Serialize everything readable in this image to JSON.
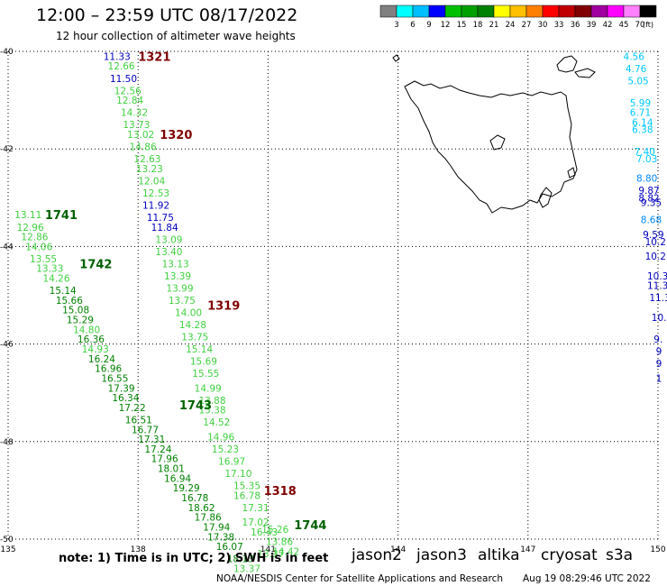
{
  "header": {
    "title": "12:00 – 23:59 UTC 08/17/2022",
    "subtitle": "12 hour collection of altimeter wave heights"
  },
  "legend": {
    "colors": [
      "#808080",
      "#00ffff",
      "#00bfff",
      "#0000ff",
      "#00c000",
      "#00a000",
      "#008000",
      "#ffff00",
      "#ffc000",
      "#ff8000",
      "#ff0000",
      "#c00000",
      "#800000",
      "#a000a0",
      "#ff00ff",
      "#ff80ff",
      "#000000"
    ],
    "labels": [
      "3",
      "6",
      "9",
      "12",
      "15",
      "18",
      "21",
      "24",
      "27",
      "30",
      "33",
      "36",
      "39",
      "42",
      "45",
      "70"
    ],
    "units": "(ft)"
  },
  "axes": {
    "lat_labels": [
      {
        "text": "-40",
        "lat": -40
      },
      {
        "text": "-42",
        "lat": -42
      },
      {
        "text": "-44",
        "lat": -44
      },
      {
        "text": "-46",
        "lat": -46
      },
      {
        "text": "-48",
        "lat": -48
      },
      {
        "text": "-50",
        "lat": -50
      }
    ],
    "lon_labels": [
      {
        "text": "135",
        "lon": 135
      },
      {
        "text": "138",
        "lon": 138
      },
      {
        "text": "141",
        "lon": 141
      },
      {
        "text": "144",
        "lon": 144
      },
      {
        "text": "147",
        "lon": 147
      },
      {
        "text": "150",
        "lon": 150
      }
    ],
    "lon_range": [
      135,
      150
    ],
    "lat_range": [
      -50,
      -40
    ]
  },
  "tracks": {
    "times": [
      {
        "text": "1321",
        "lon": 138.0,
        "lat": -40.1,
        "color": "#800000"
      },
      {
        "text": "1320",
        "lon": 138.5,
        "lat": -41.7,
        "color": "#800000"
      },
      {
        "text": "1741",
        "lon": 135.85,
        "lat": -43.35,
        "color": "#006000"
      },
      {
        "text": "1742",
        "lon": 136.65,
        "lat": -44.35,
        "color": "#006000"
      },
      {
        "text": "1319",
        "lon": 139.6,
        "lat": -45.2,
        "color": "#800000"
      },
      {
        "text": "1743",
        "lon": 138.95,
        "lat": -47.25,
        "color": "#006000"
      },
      {
        "text": "1318",
        "lon": 140.9,
        "lat": -49.0,
        "color": "#800000"
      },
      {
        "text": "1744",
        "lon": 141.6,
        "lat": -49.7,
        "color": "#006000"
      }
    ],
    "points": [
      {
        "v": "11.33",
        "lon": 137.2,
        "lat": -40.1,
        "c": "#0000c0"
      },
      {
        "v": "12.66",
        "lon": 137.3,
        "lat": -40.3,
        "c": "#40d040"
      },
      {
        "v": "11.50",
        "lon": 137.35,
        "lat": -40.55,
        "c": "#0000c0"
      },
      {
        "v": "12.56",
        "lon": 137.45,
        "lat": -40.8,
        "c": "#40d040"
      },
      {
        "v": "12.84",
        "lon": 137.5,
        "lat": -41.0,
        "c": "#40d040"
      },
      {
        "v": "14.32",
        "lon": 137.6,
        "lat": -41.25,
        "c": "#40d040"
      },
      {
        "v": "13.73",
        "lon": 137.65,
        "lat": -41.5,
        "c": "#40d040"
      },
      {
        "v": "13.02",
        "lon": 137.75,
        "lat": -41.7,
        "c": "#40d040"
      },
      {
        "v": "14.86",
        "lon": 137.8,
        "lat": -41.95,
        "c": "#40d040"
      },
      {
        "v": "12.63",
        "lon": 137.9,
        "lat": -42.2,
        "c": "#40d040"
      },
      {
        "v": "13.23",
        "lon": 137.95,
        "lat": -42.4,
        "c": "#40d040"
      },
      {
        "v": "12.04",
        "lon": 138.0,
        "lat": -42.65,
        "c": "#40d040"
      },
      {
        "v": "12.53",
        "lon": 138.1,
        "lat": -42.9,
        "c": "#40d040"
      },
      {
        "v": "11.92",
        "lon": 138.1,
        "lat": -43.15,
        "c": "#0000c0"
      },
      {
        "v": "11.75",
        "lon": 138.2,
        "lat": -43.4,
        "c": "#0000c0"
      },
      {
        "v": "11.84",
        "lon": 138.3,
        "lat": -43.6,
        "c": "#0000c0"
      },
      {
        "v": "13.09",
        "lon": 138.4,
        "lat": -43.85,
        "c": "#40d040"
      },
      {
        "v": "13.40",
        "lon": 138.4,
        "lat": -44.1,
        "c": "#40d040"
      },
      {
        "v": "13.13",
        "lon": 138.55,
        "lat": -44.35,
        "c": "#40d040"
      },
      {
        "v": "13.39",
        "lon": 138.6,
        "lat": -44.6,
        "c": "#40d040"
      },
      {
        "v": "13.99",
        "lon": 138.65,
        "lat": -44.85,
        "c": "#40d040"
      },
      {
        "v": "13.75",
        "lon": 138.7,
        "lat": -45.1,
        "c": "#40d040"
      },
      {
        "v": "14.00",
        "lon": 138.85,
        "lat": -45.35,
        "c": "#40d040"
      },
      {
        "v": "14.28",
        "lon": 138.95,
        "lat": -45.6,
        "c": "#40d040"
      },
      {
        "v": "13.75",
        "lon": 139.0,
        "lat": -45.85,
        "c": "#40d040"
      },
      {
        "v": "15.14",
        "lon": 139.1,
        "lat": -46.1,
        "c": "#40d040"
      },
      {
        "v": "15.69",
        "lon": 139.2,
        "lat": -46.35,
        "c": "#40d040"
      },
      {
        "v": "15.55",
        "lon": 139.25,
        "lat": -46.6,
        "c": "#40d040"
      },
      {
        "v": "14.99",
        "lon": 139.3,
        "lat": -46.9,
        "c": "#40d040"
      },
      {
        "v": "13.88",
        "lon": 139.4,
        "lat": -47.15,
        "c": "#40d040"
      },
      {
        "v": "15.38",
        "lon": 139.4,
        "lat": -47.35,
        "c": "#40d040"
      },
      {
        "v": "14.52",
        "lon": 139.5,
        "lat": -47.6,
        "c": "#40d040"
      },
      {
        "v": "14.96",
        "lon": 139.6,
        "lat": -47.9,
        "c": "#40d040"
      },
      {
        "v": "15.23",
        "lon": 139.7,
        "lat": -48.15,
        "c": "#40d040"
      },
      {
        "v": "16.97",
        "lon": 139.85,
        "lat": -48.4,
        "c": "#40d040"
      },
      {
        "v": "17.10",
        "lon": 140.0,
        "lat": -48.65,
        "c": "#40d040"
      },
      {
        "v": "15.35",
        "lon": 140.2,
        "lat": -48.9,
        "c": "#40d040"
      },
      {
        "v": "16.78",
        "lon": 140.2,
        "lat": -49.1,
        "c": "#40d040"
      },
      {
        "v": "17.31",
        "lon": 140.4,
        "lat": -49.35,
        "c": "#40d040"
      },
      {
        "v": "17.02",
        "lon": 140.4,
        "lat": -49.65,
        "c": "#40d040"
      },
      {
        "v": "16.43",
        "lon": 140.6,
        "lat": -49.85,
        "c": "#40d040"
      },
      {
        "v": "15.26",
        "lon": 140.85,
        "lat": -49.8,
        "c": "#40d040"
      },
      {
        "v": "13.86",
        "lon": 140.95,
        "lat": -50.05,
        "c": "#40d040"
      },
      {
        "v": "14.42",
        "lon": 141.1,
        "lat": -50.25,
        "c": "#40d040"
      },
      {
        "v": "13.37",
        "lon": 140.75,
        "lat": -50.3,
        "c": "#40d040"
      },
      {
        "v": "13.11",
        "lon": 135.15,
        "lat": -43.35,
        "c": "#40d040"
      },
      {
        "v": "12.96",
        "lon": 135.2,
        "lat": -43.6,
        "c": "#40d040"
      },
      {
        "v": "12.86",
        "lon": 135.3,
        "lat": -43.8,
        "c": "#40d040"
      },
      {
        "v": "14.06",
        "lon": 135.4,
        "lat": -44.0,
        "c": "#40d040"
      },
      {
        "v": "13.55",
        "lon": 135.5,
        "lat": -44.25,
        "c": "#40d040"
      },
      {
        "v": "13.33",
        "lon": 135.65,
        "lat": -44.45,
        "c": "#40d040"
      },
      {
        "v": "14.26",
        "lon": 135.8,
        "lat": -44.65,
        "c": "#40d040"
      },
      {
        "v": "15.14",
        "lon": 135.95,
        "lat": -44.9,
        "c": "#008000"
      },
      {
        "v": "15.66",
        "lon": 136.1,
        "lat": -45.1,
        "c": "#008000"
      },
      {
        "v": "15.08",
        "lon": 136.25,
        "lat": -45.3,
        "c": "#008000"
      },
      {
        "v": "15.29",
        "lon": 136.35,
        "lat": -45.5,
        "c": "#008000"
      },
      {
        "v": "14.80",
        "lon": 136.5,
        "lat": -45.7,
        "c": "#40d040"
      },
      {
        "v": "16.36",
        "lon": 136.6,
        "lat": -45.9,
        "c": "#008000"
      },
      {
        "v": "14.93",
        "lon": 136.7,
        "lat": -46.1,
        "c": "#40d040"
      },
      {
        "v": "16.24",
        "lon": 136.85,
        "lat": -46.3,
        "c": "#008000"
      },
      {
        "v": "16.96",
        "lon": 137.0,
        "lat": -46.5,
        "c": "#008000"
      },
      {
        "v": "16.55",
        "lon": 137.15,
        "lat": -46.7,
        "c": "#008000"
      },
      {
        "v": "17.39",
        "lon": 137.3,
        "lat": -46.9,
        "c": "#008000"
      },
      {
        "v": "16.34",
        "lon": 137.4,
        "lat": -47.1,
        "c": "#008000"
      },
      {
        "v": "17.22",
        "lon": 137.55,
        "lat": -47.3,
        "c": "#008000"
      },
      {
        "v": "16.51",
        "lon": 137.7,
        "lat": -47.55,
        "c": "#008000"
      },
      {
        "v": "16.77",
        "lon": 137.85,
        "lat": -47.75,
        "c": "#008000"
      },
      {
        "v": "17.31",
        "lon": 138.0,
        "lat": -47.95,
        "c": "#008000"
      },
      {
        "v": "17.24",
        "lon": 138.15,
        "lat": -48.15,
        "c": "#008000"
      },
      {
        "v": "17.96",
        "lon": 138.3,
        "lat": -48.35,
        "c": "#008000"
      },
      {
        "v": "18.01",
        "lon": 138.45,
        "lat": -48.55,
        "c": "#008000"
      },
      {
        "v": "16.94",
        "lon": 138.6,
        "lat": -48.75,
        "c": "#008000"
      },
      {
        "v": "19.29",
        "lon": 138.8,
        "lat": -48.95,
        "c": "#008000"
      },
      {
        "v": "16.78",
        "lon": 139.0,
        "lat": -49.15,
        "c": "#008000"
      },
      {
        "v": "18.62",
        "lon": 139.15,
        "lat": -49.35,
        "c": "#008000"
      },
      {
        "v": "17.86",
        "lon": 139.3,
        "lat": -49.55,
        "c": "#008000"
      },
      {
        "v": "17.94",
        "lon": 139.5,
        "lat": -49.75,
        "c": "#008000"
      },
      {
        "v": "17.38",
        "lon": 139.6,
        "lat": -49.95,
        "c": "#008000"
      },
      {
        "v": "16.07",
        "lon": 139.8,
        "lat": -50.15,
        "c": "#008000"
      },
      {
        "v": "18.13",
        "lon": 140.05,
        "lat": -50.4,
        "c": "#008000"
      },
      {
        "v": "13.37",
        "lon": 140.2,
        "lat": -50.6,
        "c": "#40d040"
      },
      {
        "v": "4.56",
        "lon": 149.2,
        "lat": -40.1,
        "c": "#00c8ff"
      },
      {
        "v": "4.76",
        "lon": 149.25,
        "lat": -40.35,
        "c": "#00c8ff"
      },
      {
        "v": "5.05",
        "lon": 149.3,
        "lat": -40.6,
        "c": "#00c8ff"
      },
      {
        "v": "5.99",
        "lon": 149.35,
        "lat": -41.05,
        "c": "#00c8ff"
      },
      {
        "v": "6.71",
        "lon": 149.35,
        "lat": -41.25,
        "c": "#00c8ff"
      },
      {
        "v": "6.14",
        "lon": 149.4,
        "lat": -41.45,
        "c": "#00c8ff"
      },
      {
        "v": "6.38",
        "lon": 149.4,
        "lat": -41.6,
        "c": "#00c8ff"
      },
      {
        "v": "7.40",
        "lon": 149.45,
        "lat": -42.05,
        "c": "#00c8ff"
      },
      {
        "v": "7.03",
        "lon": 149.5,
        "lat": -42.2,
        "c": "#00c8ff"
      },
      {
        "v": "8.80",
        "lon": 149.5,
        "lat": -42.6,
        "c": "#0088ff"
      },
      {
        "v": "9.87",
        "lon": 149.55,
        "lat": -42.85,
        "c": "#0000c0"
      },
      {
        "v": "8.82",
        "lon": 149.55,
        "lat": -43.0,
        "c": "#0000c0"
      },
      {
        "v": "9.35",
        "lon": 149.6,
        "lat": -43.1,
        "c": "#0000c0"
      },
      {
        "v": "8.68",
        "lon": 149.6,
        "lat": -43.45,
        "c": "#0088ff"
      },
      {
        "v": "9.59",
        "lon": 149.65,
        "lat": -43.75,
        "c": "#0000c0"
      },
      {
        "v": "10.2",
        "lon": 149.7,
        "lat": -43.9,
        "c": "#0000c0"
      },
      {
        "v": "10.2",
        "lon": 149.7,
        "lat": -44.2,
        "c": "#0000c0"
      },
      {
        "v": "10.3",
        "lon": 149.75,
        "lat": -44.6,
        "c": "#0000c0"
      },
      {
        "v": "11.3",
        "lon": 149.75,
        "lat": -44.8,
        "c": "#0000c0"
      },
      {
        "v": "11.3",
        "lon": 149.8,
        "lat": -45.05,
        "c": "#0000c0"
      },
      {
        "v": "10.",
        "lon": 149.85,
        "lat": -45.45,
        "c": "#0000c0"
      },
      {
        "v": "9.",
        "lon": 149.9,
        "lat": -45.9,
        "c": "#0000c0"
      },
      {
        "v": "9",
        "lon": 149.95,
        "lat": -46.15,
        "c": "#0000c0"
      },
      {
        "v": "9",
        "lon": 149.95,
        "lat": -46.4,
        "c": "#0000c0"
      },
      {
        "v": "1",
        "lon": 149.95,
        "lat": -46.7,
        "c": "#0000c0"
      }
    ]
  },
  "footer": {
    "note": "note:  1) Time is in UTC;  2) SWH is in feet",
    "satellites": [
      {
        "name": "jason2",
        "color": "#0000ff"
      },
      {
        "name": "jason3",
        "color": "#008000"
      },
      {
        "name": "altika",
        "color": "#ff9900"
      },
      {
        "name": "cryosat",
        "color": "#e00000"
      },
      {
        "name": "s3a",
        "color": "#800000"
      }
    ],
    "credit": "NOAA/NESDIS Center for Satellite Applications and Research",
    "timestamp": "Aug 19 08:29:46 UTC 2022"
  }
}
